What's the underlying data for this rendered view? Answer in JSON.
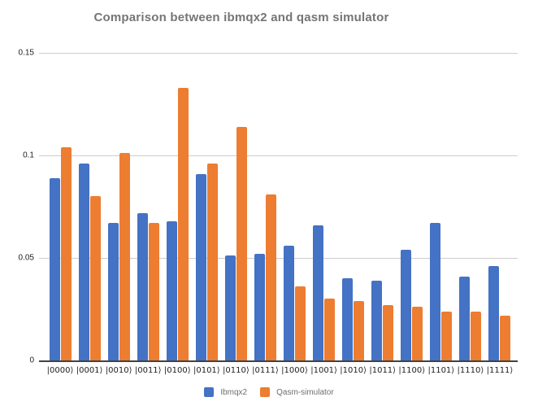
{
  "chart_data": {
    "type": "bar",
    "title": "Comparison between ibmqx2 and qasm simulator",
    "categories": [
      "|0000⟩",
      "|0001⟩",
      "|0010⟩",
      "|0011⟩",
      "|0100⟩",
      "|0101⟩",
      "|0110⟩",
      "|0111⟩",
      "|1000⟩",
      "|1001⟩",
      "|1010⟩",
      "|1011⟩",
      "|1100⟩",
      "|1101⟩",
      "|1110⟩",
      "|1111⟩"
    ],
    "series": [
      {
        "name": "Ibmqx2",
        "color": "#4472C4",
        "values": [
          0.089,
          0.096,
          0.067,
          0.072,
          0.068,
          0.091,
          0.051,
          0.052,
          0.056,
          0.066,
          0.04,
          0.039,
          0.054,
          0.067,
          0.041,
          0.046
        ]
      },
      {
        "name": "Qasm-simulator",
        "color": "#ED7D31",
        "values": [
          0.104,
          0.08,
          0.101,
          0.067,
          0.133,
          0.096,
          0.114,
          0.081,
          0.036,
          0.03,
          0.029,
          0.027,
          0.026,
          0.024,
          0.024,
          0.022
        ]
      }
    ],
    "xlabel": "",
    "ylabel": "",
    "ylim": [
      0,
      0.15
    ],
    "y_ticks": [
      0,
      0.05,
      0.1,
      0.15
    ],
    "y_tick_labels": [
      "0",
      "0.05",
      "0.1",
      "0.15"
    ],
    "grid": true,
    "legend_position": "bottom",
    "colors": {
      "title_text": "#757575",
      "axis_text": "#212121",
      "legend_text": "#6e6e6e",
      "gridline": "#cccccc",
      "axis_line": "#424242",
      "background": "#ffffff"
    }
  }
}
